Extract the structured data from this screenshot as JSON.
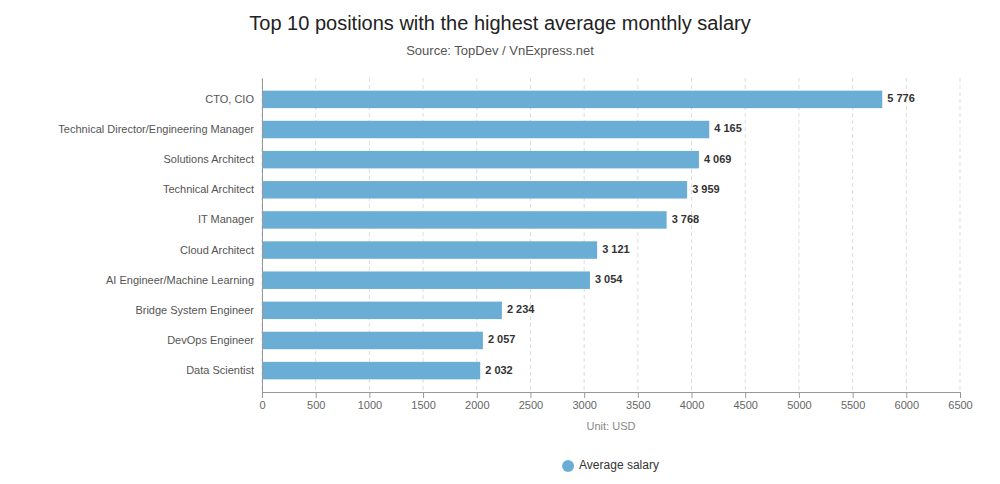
{
  "chart_data": {
    "type": "bar",
    "orientation": "horizontal",
    "title": "Top 10 positions with the highest average monthly salary",
    "subtitle": "Source: TopDev / VnExpress.net",
    "xlabel": "Unit: USD",
    "categories": [
      "Data Scientist",
      "DevOps Engineer",
      "Bridge System Engineer",
      "AI Engineer/Machine Learning",
      "Cloud Architect",
      "IT Manager",
      "Technical Architect",
      "Solutions Architect",
      "Technical Director/Engineering Manager",
      "CTO, CIO"
    ],
    "series": [
      {
        "name": "Average salary",
        "color": "#6aaed6",
        "values": [
          2032,
          2057,
          2234,
          3054,
          3121,
          3768,
          3959,
          4069,
          4165,
          5776
        ],
        "value_labels": [
          "2 032",
          "2 057",
          "2 234",
          "3 054",
          "3 121",
          "3 768",
          "3 959",
          "4 069",
          "4 165",
          "5 776"
        ]
      }
    ],
    "xlim": [
      0,
      6500
    ],
    "xticks": [
      0,
      500,
      1000,
      1500,
      2000,
      2500,
      3000,
      3500,
      4000,
      4500,
      5000,
      5500,
      6000,
      6500
    ],
    "grid": true,
    "legend": "bottom"
  }
}
